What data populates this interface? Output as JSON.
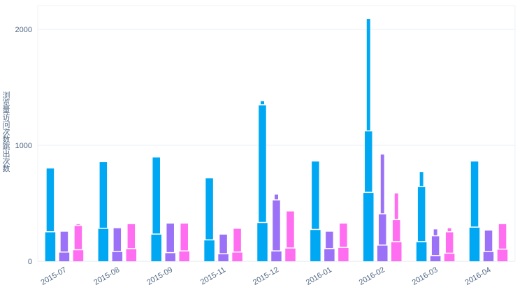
{
  "chart_data": {
    "type": "bar",
    "title": "",
    "xlabel": "",
    "ylabel": "浏览量访问次数跳出次数",
    "ylabel_lines": [
      "浏",
      "览",
      "量",
      "访",
      "问",
      "次",
      "数",
      "跳",
      "出",
      "次",
      "数"
    ],
    "ylim": [
      0,
      2100
    ],
    "yticks": [
      0,
      1000,
      2000
    ],
    "grid": true,
    "legend": "none",
    "categories": [
      "2015-07",
      "2015-08",
      "2015-09",
      "2015-11",
      "2015-12",
      "2016-01",
      "2016-02",
      "2016-03",
      "2016-04"
    ],
    "series": [
      {
        "color": "#00a8f3",
        "segments": [
          [
            {
              "from": 0,
              "to": 250
            },
            {
              "from": 250,
              "to": 800
            }
          ],
          [
            {
              "from": 0,
              "to": 280
            },
            {
              "from": 280,
              "to": 855
            }
          ],
          [
            {
              "from": 0,
              "to": 230
            },
            {
              "from": 230,
              "to": 895
            }
          ],
          [
            {
              "from": 0,
              "to": 180
            },
            {
              "from": 180,
              "to": 715
            }
          ],
          [
            {
              "from": 0,
              "to": 330
            },
            {
              "from": 330,
              "to": 1345
            },
            {
              "from": 1345,
              "to": 1380
            }
          ],
          [
            {
              "from": 0,
              "to": 270
            },
            {
              "from": 270,
              "to": 860
            }
          ],
          [
            {
              "from": 0,
              "to": 590
            },
            {
              "from": 590,
              "to": 1120
            },
            {
              "from": 1120,
              "to": 2090
            }
          ],
          [
            {
              "from": 0,
              "to": 165
            },
            {
              "from": 165,
              "to": 640
            },
            {
              "from": 640,
              "to": 770
            }
          ],
          [
            {
              "from": 0,
              "to": 290
            },
            {
              "from": 290,
              "to": 860
            }
          ]
        ]
      },
      {
        "color": "#9b72f7",
        "segments": [
          [
            {
              "from": 0,
              "to": 75
            },
            {
              "from": 75,
              "to": 255
            }
          ],
          [
            {
              "from": 0,
              "to": 80
            },
            {
              "from": 80,
              "to": 285
            }
          ],
          [
            {
              "from": 0,
              "to": 70
            },
            {
              "from": 70,
              "to": 325
            }
          ],
          [
            {
              "from": 0,
              "to": 60
            },
            {
              "from": 60,
              "to": 230
            }
          ],
          [
            {
              "from": 0,
              "to": 85
            },
            {
              "from": 85,
              "to": 525
            },
            {
              "from": 525,
              "to": 575
            }
          ],
          [
            {
              "from": 0,
              "to": 105
            },
            {
              "from": 105,
              "to": 255
            }
          ],
          [
            {
              "from": 0,
              "to": 135
            },
            {
              "from": 135,
              "to": 405
            },
            {
              "from": 405,
              "to": 920
            }
          ],
          [
            {
              "from": 0,
              "to": 45
            },
            {
              "from": 45,
              "to": 215
            },
            {
              "from": 215,
              "to": 275
            }
          ],
          [
            {
              "from": 0,
              "to": 80
            },
            {
              "from": 80,
              "to": 265
            }
          ]
        ]
      },
      {
        "color": "#ff6ef1",
        "segments": [
          [
            {
              "from": 0,
              "to": 95
            },
            {
              "from": 95,
              "to": 305
            },
            {
              "from": 305,
              "to": 320
            }
          ],
          [
            {
              "from": 0,
              "to": 105
            },
            {
              "from": 105,
              "to": 320
            }
          ],
          [
            {
              "from": 0,
              "to": 85
            },
            {
              "from": 85,
              "to": 325
            }
          ],
          [
            {
              "from": 0,
              "to": 75
            },
            {
              "from": 75,
              "to": 280
            }
          ],
          [
            {
              "from": 0,
              "to": 110
            },
            {
              "from": 110,
              "to": 430
            }
          ],
          [
            {
              "from": 0,
              "to": 115
            },
            {
              "from": 115,
              "to": 325
            }
          ],
          [
            {
              "from": 0,
              "to": 165
            },
            {
              "from": 165,
              "to": 355
            },
            {
              "from": 355,
              "to": 585
            }
          ],
          [
            {
              "from": 0,
              "to": 65
            },
            {
              "from": 65,
              "to": 250
            },
            {
              "from": 250,
              "to": 285
            }
          ],
          [
            {
              "from": 0,
              "to": 100
            },
            {
              "from": 100,
              "to": 320
            }
          ]
        ]
      }
    ]
  }
}
